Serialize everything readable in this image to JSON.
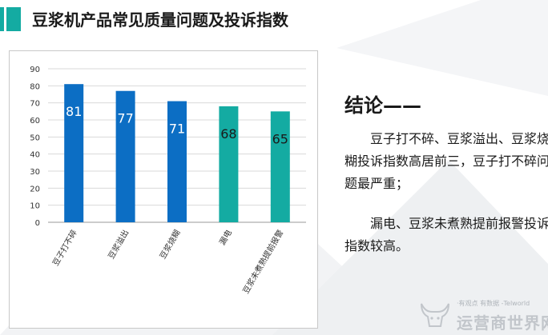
{
  "header": {
    "title": "豆浆机产品常见质量问题及投诉指数"
  },
  "chart_data": {
    "type": "bar",
    "categories": [
      "豆子打不碎",
      "豆浆溢出",
      "豆浆烧糊",
      "漏电",
      "豆浆未煮熟提前报警"
    ],
    "values": [
      81,
      77,
      71,
      68,
      65
    ],
    "bar_colors": [
      "#0c6ec4",
      "#0c6ec4",
      "#0c6ec4",
      "#14aba2",
      "#14aba2"
    ],
    "label_colors": [
      "#ffffff",
      "#ffffff",
      "#ffffff",
      "#1a1a1a",
      "#1a1a1a"
    ],
    "yticks": [
      0,
      10,
      20,
      30,
      40,
      50,
      60,
      70,
      80,
      90
    ],
    "ylim": [
      0,
      90
    ],
    "grid": true,
    "title": "",
    "xlabel": "",
    "ylabel": ""
  },
  "conclusion": {
    "title": "结论——",
    "paragraphs": [
      "豆子打不碎、豆浆溢出、豆浆烧糊投诉指数高居前三，豆子打不碎问题最严重；",
      "漏电、豆浆未煮熟提前报警投诉指数较高。"
    ]
  },
  "watermark": {
    "line1": "·有观点 有数据 -Telworld",
    "line2": "运营商世界网"
  }
}
